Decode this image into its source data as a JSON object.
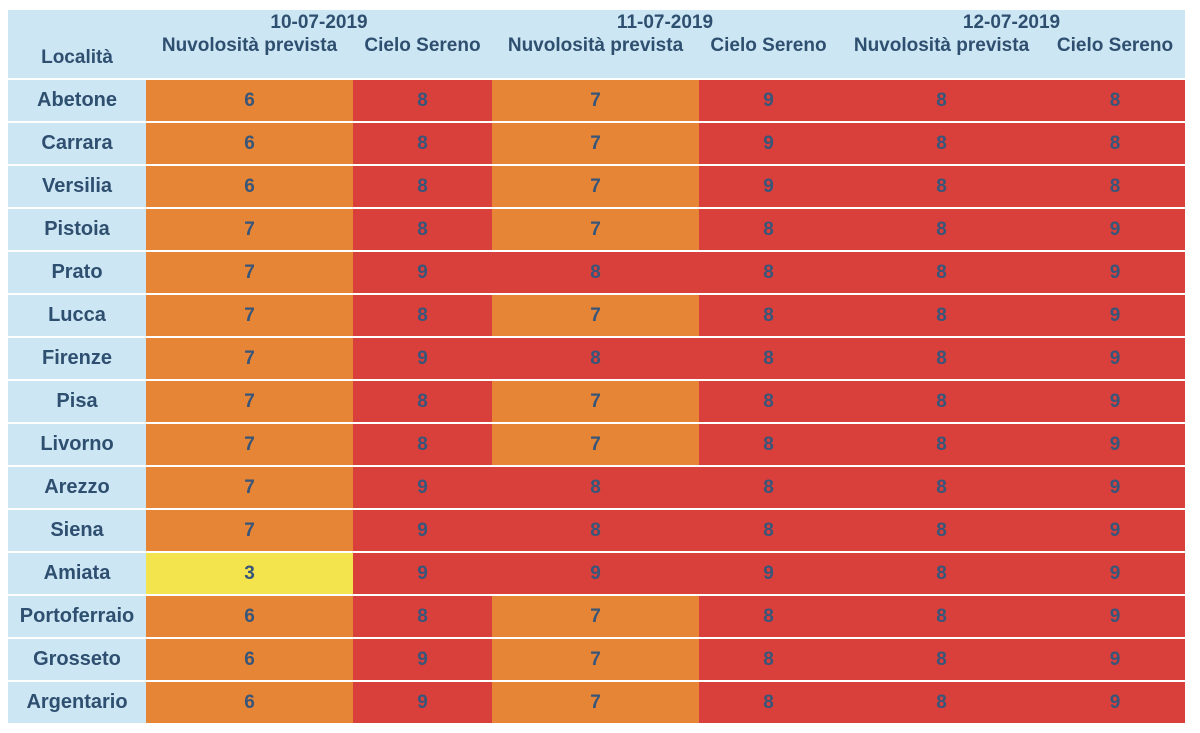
{
  "header": {
    "localita_label": "Località",
    "dates": [
      "10-07-2019",
      "11-07-2019",
      "12-07-2019"
    ],
    "nuvolosita_label": "Nuvolosità prevista",
    "cielo_label": "Cielo Sereno"
  },
  "colors": {
    "header_bg": "#cde6f3",
    "level_3": "#f3e34c",
    "level_6": "#e58535",
    "level_7": "#e58535",
    "level_8": "#d9403b",
    "level_9": "#d9403b",
    "text": "#38557a"
  },
  "rows": [
    {
      "name": "Abetone",
      "values": [
        "6",
        "8",
        "7",
        "9",
        "8",
        "8"
      ]
    },
    {
      "name": "Carrara",
      "values": [
        "6",
        "8",
        "7",
        "9",
        "8",
        "8"
      ]
    },
    {
      "name": "Versilia",
      "values": [
        "6",
        "8",
        "7",
        "9",
        "8",
        "8"
      ]
    },
    {
      "name": "Pistoia",
      "values": [
        "7",
        "8",
        "7",
        "8",
        "8",
        "9"
      ]
    },
    {
      "name": "Prato",
      "values": [
        "7",
        "9",
        "8",
        "8",
        "8",
        "9"
      ]
    },
    {
      "name": "Lucca",
      "values": [
        "7",
        "8",
        "7",
        "8",
        "8",
        "9"
      ]
    },
    {
      "name": "Firenze",
      "values": [
        "7",
        "9",
        "8",
        "8",
        "8",
        "9"
      ]
    },
    {
      "name": "Pisa",
      "values": [
        "7",
        "8",
        "7",
        "8",
        "8",
        "9"
      ]
    },
    {
      "name": "Livorno",
      "values": [
        "7",
        "8",
        "7",
        "8",
        "8",
        "9"
      ]
    },
    {
      "name": "Arezzo",
      "values": [
        "7",
        "9",
        "8",
        "8",
        "8",
        "9"
      ]
    },
    {
      "name": "Siena",
      "values": [
        "7",
        "9",
        "8",
        "8",
        "8",
        "9"
      ]
    },
    {
      "name": "Amiata",
      "values": [
        "3",
        "9",
        "9",
        "9",
        "8",
        "9"
      ]
    },
    {
      "name": "Portoferraio",
      "values": [
        "6",
        "8",
        "7",
        "8",
        "8",
        "9"
      ]
    },
    {
      "name": "Grosseto",
      "values": [
        "6",
        "9",
        "7",
        "8",
        "8",
        "9"
      ]
    },
    {
      "name": "Argentario",
      "values": [
        "6",
        "9",
        "7",
        "8",
        "8",
        "9"
      ]
    }
  ]
}
